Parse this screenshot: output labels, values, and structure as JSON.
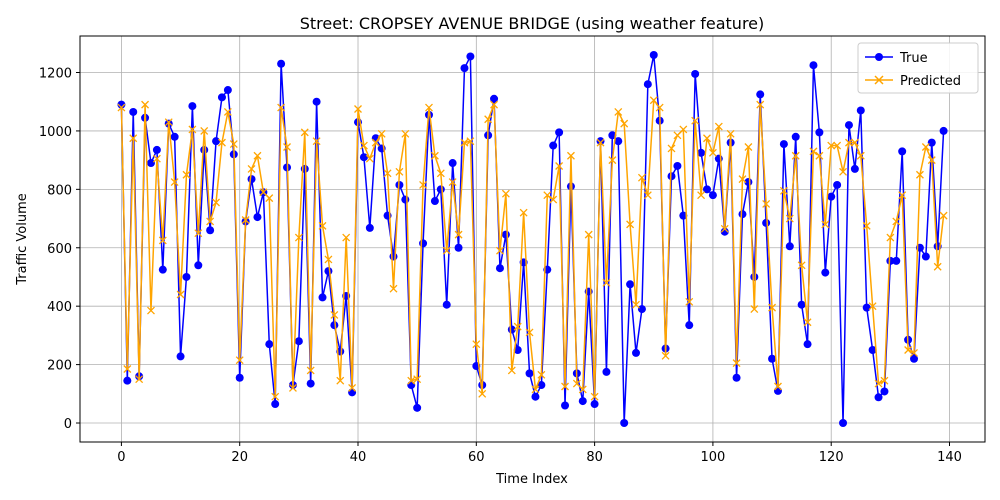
{
  "chart_data": {
    "type": "line",
    "title": "Street: CROPSEY AVENUE BRIDGE (using weather feature)",
    "xlabel": "Time Index",
    "ylabel": "Traffic Volume",
    "xlim": [
      -7,
      146
    ],
    "ylim": [
      -65,
      1325
    ],
    "x_ticks": [
      0,
      20,
      40,
      60,
      80,
      100,
      120,
      140
    ],
    "y_ticks": [
      0,
      200,
      400,
      600,
      800,
      1000,
      1200
    ],
    "grid": true,
    "legend_position": "top-right",
    "series": [
      {
        "name": "True",
        "color": "#0000ff",
        "marker": "circle",
        "values": [
          1090,
          145,
          1065,
          160,
          1045,
          890,
          935,
          525,
          1025,
          980,
          228,
          500,
          1085,
          540,
          935,
          660,
          965,
          1115,
          1140,
          920,
          155,
          690,
          835,
          705,
          790,
          270,
          65,
          1230,
          875,
          130,
          280,
          870,
          135,
          1100,
          430,
          520,
          335,
          245,
          435,
          105,
          1030,
          910,
          668,
          975,
          940,
          710,
          570,
          815,
          765,
          130,
          52,
          615,
          1055,
          760,
          800,
          405,
          890,
          600,
          1215,
          1255,
          195,
          130,
          985,
          1110,
          530,
          645,
          320,
          250,
          550,
          170,
          90,
          130,
          525,
          950,
          995,
          60,
          810,
          170,
          75,
          450,
          65,
          965,
          175,
          985,
          965,
          0,
          475,
          240,
          390,
          1160,
          1260,
          1035,
          255,
          845,
          880,
          710,
          335,
          1195,
          925,
          800,
          780,
          905,
          655,
          960,
          155,
          715,
          825,
          500,
          1125,
          685,
          220,
          110,
          955,
          605,
          980,
          405,
          270,
          1225,
          995,
          515,
          775,
          815,
          0,
          1020,
          870,
          1070,
          395,
          250,
          88,
          108,
          555,
          555,
          930,
          285,
          220,
          600,
          570,
          960,
          605,
          1000
        ]
      },
      {
        "name": "Predicted",
        "color": "#ffa500",
        "marker": "x",
        "values": [
          1080,
          185,
          975,
          150,
          1090,
          385,
          905,
          625,
          1030,
          825,
          440,
          850,
          1005,
          650,
          1000,
          690,
          755,
          960,
          1065,
          955,
          215,
          695,
          870,
          915,
          790,
          770,
          90,
          1080,
          945,
          120,
          635,
          995,
          180,
          965,
          675,
          560,
          370,
          145,
          635,
          120,
          1075,
          950,
          905,
          960,
          990,
          855,
          460,
          860,
          990,
          145,
          150,
          815,
          1080,
          915,
          855,
          590,
          825,
          645,
          960,
          965,
          270,
          100,
          1040,
          1090,
          590,
          785,
          180,
          330,
          720,
          310,
          115,
          165,
          780,
          765,
          880,
          125,
          915,
          135,
          115,
          645,
          90,
          960,
          480,
          900,
          1065,
          1025,
          680,
          405,
          840,
          780,
          1105,
          1080,
          230,
          940,
          985,
          1005,
          415,
          1035,
          780,
          975,
          925,
          1015,
          665,
          990,
          205,
          835,
          945,
          390,
          1090,
          750,
          395,
          125,
          795,
          700,
          915,
          540,
          345,
          930,
          915,
          680,
          950,
          950,
          860,
          960,
          960,
          915,
          675,
          400,
          135,
          145,
          635,
          690,
          780,
          250,
          240,
          850,
          945,
          900,
          535,
          710
        ]
      }
    ]
  }
}
